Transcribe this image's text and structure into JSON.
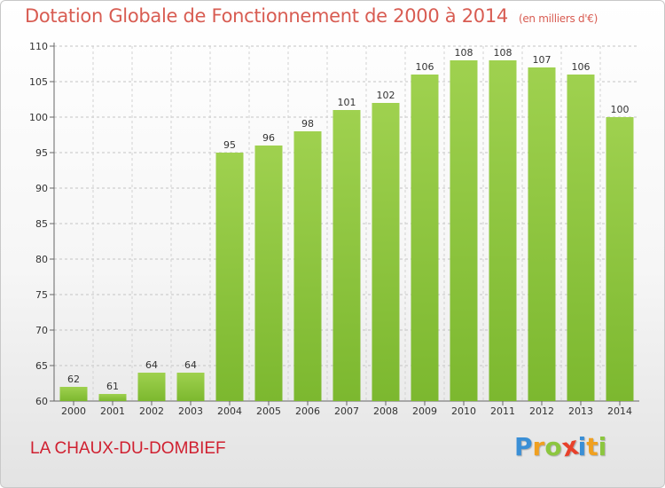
{
  "chart_data": {
    "type": "bar",
    "title": "Dotation Globale de Fonctionnement de 2000 à 2014",
    "subtitle": "(en milliers d'€)",
    "categories": [
      "2000",
      "2001",
      "2002",
      "2003",
      "2004",
      "2005",
      "2006",
      "2007",
      "2008",
      "2009",
      "2010",
      "2011",
      "2012",
      "2013",
      "2014"
    ],
    "values": [
      62,
      61,
      64,
      64,
      95,
      96,
      98,
      101,
      102,
      106,
      108,
      108,
      107,
      106,
      100
    ],
    "data_labels": [
      "62",
      "61",
      "64",
      "64",
      "95",
      "96",
      "98",
      "101",
      "102",
      "106",
      "108",
      "108",
      "107",
      "106",
      "100"
    ],
    "ylim": [
      60,
      110
    ],
    "yticks": [
      60,
      65,
      70,
      75,
      80,
      85,
      90,
      95,
      100,
      105,
      110
    ],
    "ytick_labels": [
      "60",
      "65",
      "70",
      "75",
      "80",
      "85",
      "90",
      "95",
      "100",
      "105",
      "110"
    ],
    "xlabel": "",
    "ylabel": "",
    "grid": true,
    "legend": "none",
    "bar_color": "#7cb82f",
    "bar_color_light": "#9fd14f"
  },
  "commune": "LA CHAUX-DU-DOMBIEF",
  "logo": {
    "letters": [
      "P",
      "r",
      "o",
      "x",
      "i",
      "t",
      "i"
    ],
    "colors": [
      "#3a8fd6",
      "#f0a020",
      "#8cc63f",
      "#e8402a",
      "#3a8fd6",
      "#f0a020",
      "#8cc63f"
    ]
  }
}
